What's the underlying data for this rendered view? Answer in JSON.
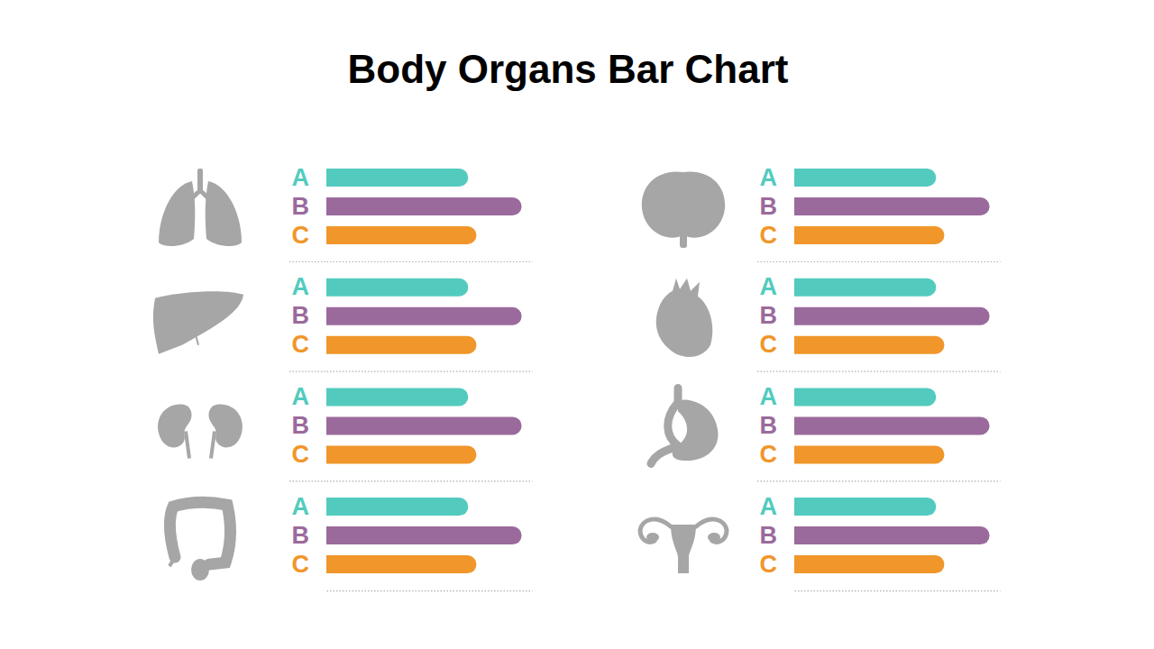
{
  "title": "Body Organs Bar Chart",
  "chart_data": [
    {
      "type": "bar",
      "orientation": "horizontal",
      "categories": [
        "A",
        "B",
        "C"
      ],
      "values": [
        69,
        95,
        73
      ],
      "colors": [
        "#52cbbe",
        "#9b6a9c",
        "#f0962a"
      ],
      "xlim": [
        0,
        100
      ],
      "tick_labels": "y"
    },
    {
      "type": "bar",
      "orientation": "horizontal",
      "categories": [
        "A",
        "B",
        "C"
      ],
      "values": [
        69,
        95,
        73
      ],
      "colors": [
        "#52cbbe",
        "#9b6a9c",
        "#f0962a"
      ],
      "xlim": [
        0,
        100
      ],
      "tick_labels": "y"
    },
    {
      "type": "bar",
      "orientation": "horizontal",
      "categories": [
        "A",
        "B",
        "C"
      ],
      "values": [
        69,
        95,
        73
      ],
      "colors": [
        "#52cbbe",
        "#9b6a9c",
        "#f0962a"
      ],
      "xlim": [
        0,
        100
      ],
      "tick_labels": "y"
    },
    {
      "type": "bar",
      "orientation": "horizontal",
      "categories": [
        "A",
        "B",
        "C"
      ],
      "values": [
        69,
        95,
        73
      ],
      "colors": [
        "#52cbbe",
        "#9b6a9c",
        "#f0962a"
      ],
      "xlim": [
        0,
        100
      ],
      "tick_labels": "y"
    },
    {
      "type": "bar",
      "orientation": "horizontal",
      "categories": [
        "A",
        "B",
        "C"
      ],
      "values": [
        69,
        95,
        73
      ],
      "colors": [
        "#52cbbe",
        "#9b6a9c",
        "#f0962a"
      ],
      "xlim": [
        0,
        100
      ],
      "tick_labels": "y"
    },
    {
      "type": "bar",
      "orientation": "horizontal",
      "categories": [
        "A",
        "B",
        "C"
      ],
      "values": [
        69,
        95,
        73
      ],
      "colors": [
        "#52cbbe",
        "#9b6a9c",
        "#f0962a"
      ],
      "xlim": [
        0,
        100
      ],
      "tick_labels": "y"
    },
    {
      "type": "bar",
      "orientation": "horizontal",
      "categories": [
        "A",
        "B",
        "C"
      ],
      "values": [
        69,
        95,
        73
      ],
      "colors": [
        "#52cbbe",
        "#9b6a9c",
        "#f0962a"
      ],
      "xlim": [
        0,
        100
      ],
      "tick_labels": "y"
    },
    {
      "type": "bar",
      "orientation": "horizontal",
      "categories": [
        "A",
        "B",
        "C"
      ],
      "values": [
        69,
        95,
        73
      ],
      "colors": [
        "#52cbbe",
        "#9b6a9c",
        "#f0962a"
      ],
      "xlim": [
        0,
        100
      ],
      "tick_labels": "y"
    }
  ]
}
